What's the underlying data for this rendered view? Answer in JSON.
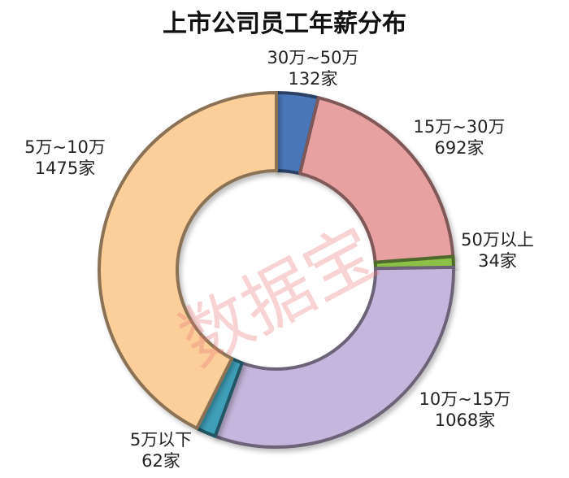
{
  "chart_data": {
    "type": "pie",
    "title": "上市公司员工年薪分布",
    "watermark": "数据宝",
    "slices": [
      {
        "range": "30万~50万",
        "count": "132家",
        "value": 132,
        "color": "#4a76b8"
      },
      {
        "range": "15万~30万",
        "count": "692家",
        "value": 692,
        "color": "#e8a1a1"
      },
      {
        "range": "50万以上",
        "count": "34家",
        "value": 34,
        "color": "#8cc04a"
      },
      {
        "range": "10万~15万",
        "count": "1068家",
        "value": 1068,
        "color": "#c4b6dc"
      },
      {
        "range": "5万以下",
        "count": "62家",
        "value": 62,
        "color": "#3f9fb8"
      },
      {
        "range": "5万~10万",
        "count": "1475家",
        "value": 1475,
        "color": "#fccf9a"
      }
    ]
  }
}
